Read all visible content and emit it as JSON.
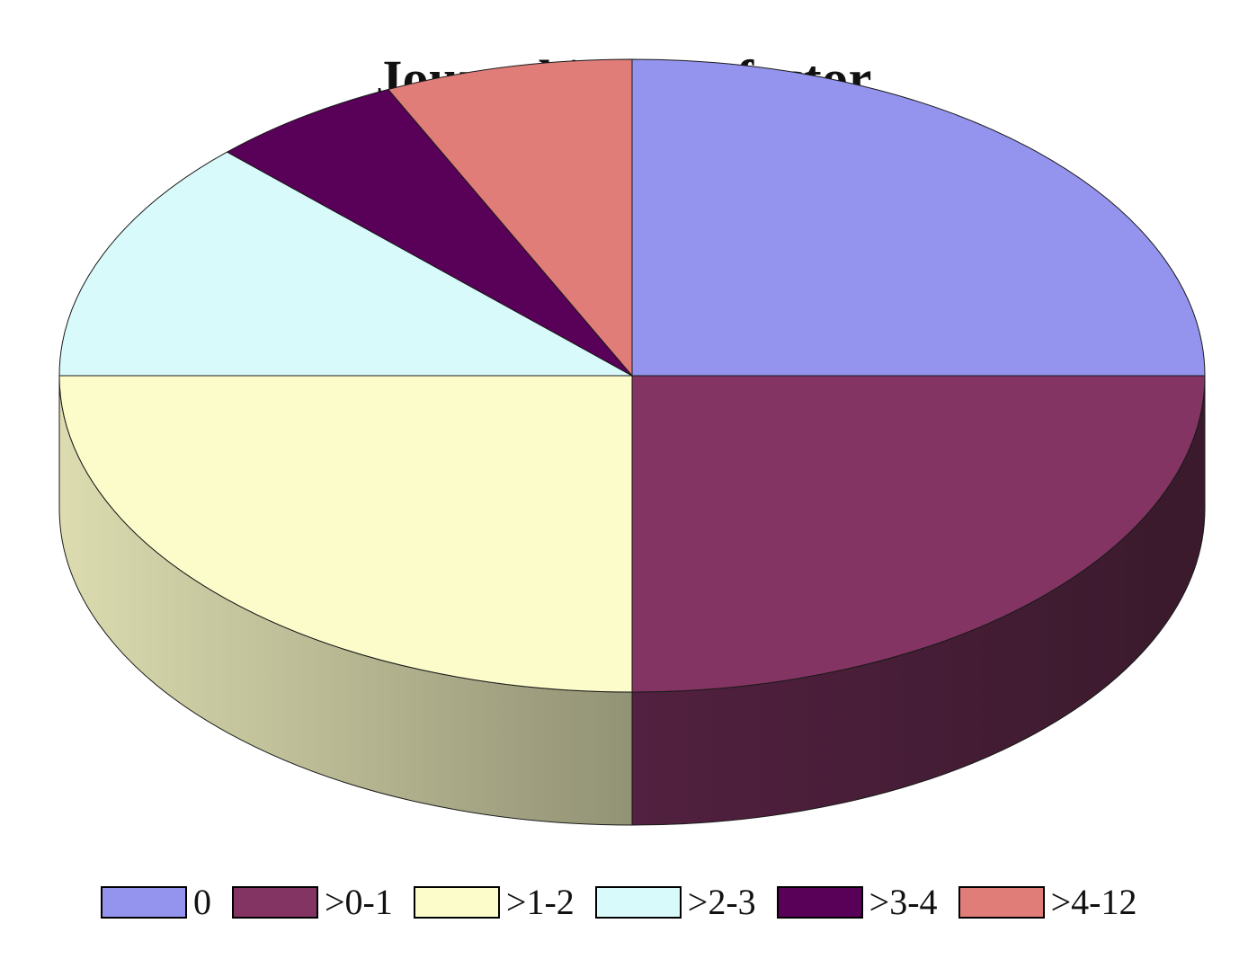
{
  "chart_data": {
    "type": "pie",
    "title": "Journal impact factor",
    "style": "3d",
    "legend_position": "bottom",
    "categories": [
      "0",
      ">0-1",
      ">1-2",
      ">2-3",
      ">3-4",
      ">4-12"
    ],
    "values": [
      25,
      25,
      25,
      12.5,
      5.5,
      7
    ],
    "colors": [
      "#9494ef",
      "#833462",
      "#fcfccb",
      "#d8fafa",
      "#590059",
      "#e07d78"
    ],
    "side_colors": {
      "1": {
        "start": "#522040",
        "end": "#3a1a2c"
      },
      "2": {
        "start": "#dcdcb0",
        "end": "#929275"
      }
    }
  }
}
